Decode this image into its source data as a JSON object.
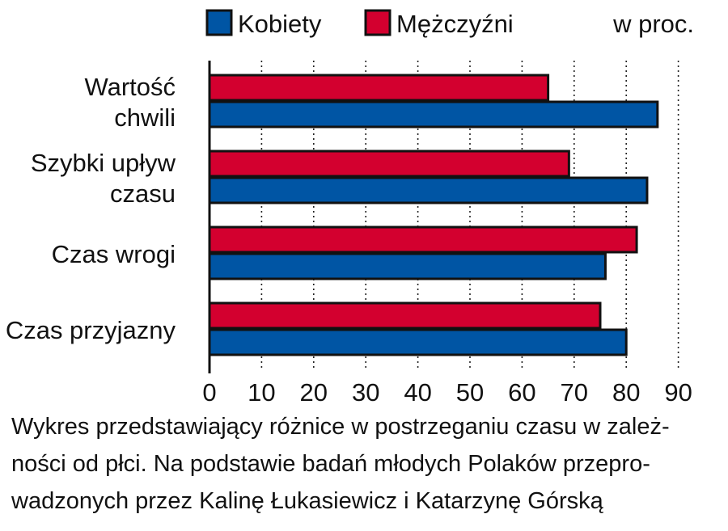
{
  "chart_data": {
    "type": "bar",
    "orientation": "horizontal",
    "unit_label": "w proc.",
    "categories": [
      [
        "Wartość",
        "chwili"
      ],
      [
        "Szybki upływ",
        "czasu"
      ],
      [
        "Czas wrogi"
      ],
      [
        "Czas przyjazny"
      ]
    ],
    "series": [
      {
        "name": "Mężczyźni",
        "color": "#d3002f",
        "values": [
          65,
          69,
          82,
          75
        ]
      },
      {
        "name": "Kobiety",
        "color": "#0055a4",
        "values": [
          86,
          84,
          76,
          80
        ]
      }
    ],
    "legend_order": [
      1,
      0
    ],
    "legend_position": "top",
    "xlim": [
      0,
      90
    ],
    "x_ticks": [
      0,
      10,
      20,
      30,
      40,
      50,
      60,
      70,
      80,
      90
    ],
    "grid": "vertical dotted"
  },
  "caption": {
    "lines": [
      "Wykres przedstawiający różnice w postrzeganiu czasu w zależ-",
      "ności od płci. Na podstawie badań młodych Polaków przepro-",
      "wadzonych przez Kalinę Łukasiewicz i Katarzynę Górską"
    ]
  }
}
